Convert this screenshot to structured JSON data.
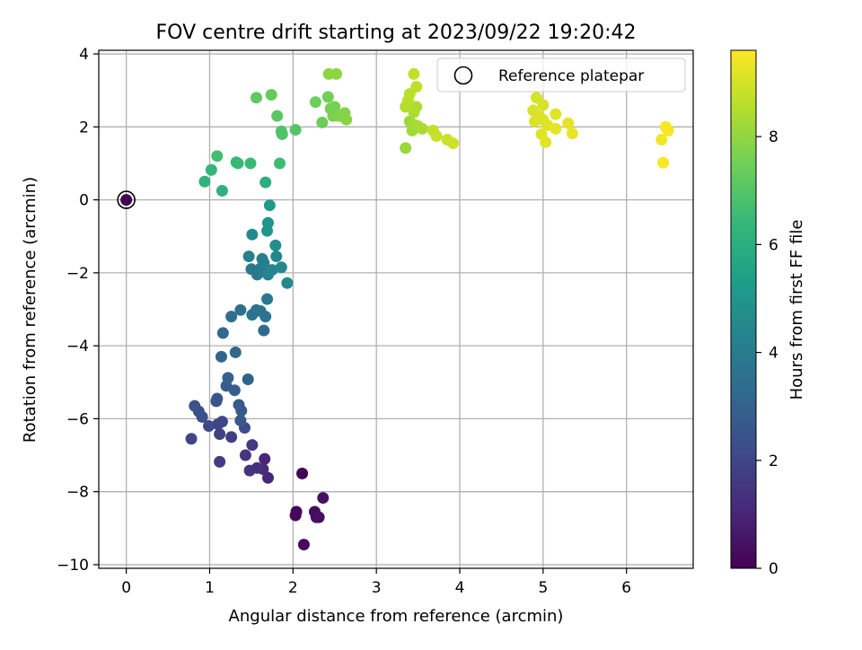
{
  "chart_data": {
    "type": "scatter",
    "title": "FOV centre drift starting at 2023/09/22 19:20:42",
    "xlabel": "Angular distance from reference (arcmin)",
    "ylabel": "Rotation from reference (arcmin)",
    "xlim": [
      -0.33,
      6.8
    ],
    "ylim": [
      -10.1,
      4.1
    ],
    "xticks": [
      0,
      1,
      2,
      3,
      4,
      5,
      6
    ],
    "yticks": [
      4,
      2,
      0,
      -2,
      -4,
      -6,
      -8,
      -10
    ],
    "xtick_labels": [
      "0",
      "1",
      "2",
      "3",
      "4",
      "5",
      "6"
    ],
    "ytick_labels": [
      "4",
      "2",
      "0",
      "−2",
      "−4",
      "−6",
      "−8",
      "−10"
    ],
    "grid": true,
    "legend": {
      "placement": "top-right",
      "entries": [
        {
          "label": "Reference platepar",
          "marker": "open-circle"
        }
      ]
    },
    "reference_point": {
      "x": 0,
      "y": 0,
      "hours": 0
    },
    "colorbar": {
      "label": "Hours from first FF file",
      "colormap": "viridis",
      "range": [
        0,
        9.6
      ],
      "ticks": [
        0,
        2,
        4,
        6,
        8
      ],
      "tick_labels": [
        "0",
        "2",
        "4",
        "6",
        "8"
      ]
    },
    "points": [
      {
        "x": 2.11,
        "y": -7.5,
        "hours": 0.1
      },
      {
        "x": 2.04,
        "y": -8.55,
        "hours": 0.15
      },
      {
        "x": 2.03,
        "y": -8.65,
        "hours": 0.2
      },
      {
        "x": 2.13,
        "y": -9.45,
        "hours": 0.25
      },
      {
        "x": 2.26,
        "y": -8.55,
        "hours": 0.3
      },
      {
        "x": 2.28,
        "y": -8.7,
        "hours": 0.35
      },
      {
        "x": 2.31,
        "y": -8.7,
        "hours": 0.4
      },
      {
        "x": 2.36,
        "y": -8.17,
        "hours": 0.45
      },
      {
        "x": 1.66,
        "y": -7.1,
        "hours": 1.0
      },
      {
        "x": 1.7,
        "y": -7.62,
        "hours": 1.1
      },
      {
        "x": 1.64,
        "y": -7.38,
        "hours": 1.2
      },
      {
        "x": 1.57,
        "y": -7.35,
        "hours": 1.3
      },
      {
        "x": 1.48,
        "y": -7.42,
        "hours": 1.4
      },
      {
        "x": 1.43,
        "y": -7.0,
        "hours": 1.5
      },
      {
        "x": 1.51,
        "y": -6.72,
        "hours": 1.6
      },
      {
        "x": 1.12,
        "y": -7.18,
        "hours": 1.7
      },
      {
        "x": 1.26,
        "y": -6.5,
        "hours": 1.8
      },
      {
        "x": 1.12,
        "y": -6.42,
        "hours": 1.85
      },
      {
        "x": 1.1,
        "y": -6.15,
        "hours": 1.9
      },
      {
        "x": 0.78,
        "y": -6.55,
        "hours": 2.0
      },
      {
        "x": 1.15,
        "y": -6.08,
        "hours": 2.05
      },
      {
        "x": 0.99,
        "y": -6.2,
        "hours": 2.1
      },
      {
        "x": 1.42,
        "y": -6.25,
        "hours": 2.2
      },
      {
        "x": 0.91,
        "y": -5.95,
        "hours": 2.3
      },
      {
        "x": 0.87,
        "y": -5.8,
        "hours": 2.35
      },
      {
        "x": 0.82,
        "y": -5.65,
        "hours": 2.4
      },
      {
        "x": 1.08,
        "y": -5.52,
        "hours": 2.45
      },
      {
        "x": 1.09,
        "y": -5.45,
        "hours": 2.5
      },
      {
        "x": 1.37,
        "y": -6.05,
        "hours": 2.6
      },
      {
        "x": 1.38,
        "y": -5.78,
        "hours": 2.65
      },
      {
        "x": 1.35,
        "y": -5.62,
        "hours": 2.7
      },
      {
        "x": 1.3,
        "y": -5.22,
        "hours": 2.8
      },
      {
        "x": 1.2,
        "y": -5.1,
        "hours": 2.85
      },
      {
        "x": 1.22,
        "y": -4.88,
        "hours": 2.9
      },
      {
        "x": 1.46,
        "y": -4.92,
        "hours": 3.0
      },
      {
        "x": 1.14,
        "y": -4.3,
        "hours": 3.1
      },
      {
        "x": 1.31,
        "y": -4.18,
        "hours": 3.2
      },
      {
        "x": 1.16,
        "y": -3.65,
        "hours": 3.3
      },
      {
        "x": 1.65,
        "y": -3.58,
        "hours": 3.4
      },
      {
        "x": 1.26,
        "y": -3.2,
        "hours": 3.5
      },
      {
        "x": 1.37,
        "y": -3.02,
        "hours": 3.55
      },
      {
        "x": 1.51,
        "y": -3.15,
        "hours": 3.6
      },
      {
        "x": 1.56,
        "y": -3.02,
        "hours": 3.65
      },
      {
        "x": 1.61,
        "y": -3.05,
        "hours": 3.7
      },
      {
        "x": 1.67,
        "y": -3.2,
        "hours": 3.75
      },
      {
        "x": 1.69,
        "y": -2.72,
        "hours": 3.8
      },
      {
        "x": 1.57,
        "y": -2.05,
        "hours": 3.9
      },
      {
        "x": 1.5,
        "y": -1.9,
        "hours": 3.95
      },
      {
        "x": 1.61,
        "y": -1.88,
        "hours": 4.0
      },
      {
        "x": 1.65,
        "y": -1.73,
        "hours": 4.05
      },
      {
        "x": 1.63,
        "y": -1.62,
        "hours": 4.1
      },
      {
        "x": 1.47,
        "y": -1.55,
        "hours": 4.2
      },
      {
        "x": 1.7,
        "y": -2.05,
        "hours": 4.3
      },
      {
        "x": 1.72,
        "y": -1.95,
        "hours": 4.35
      },
      {
        "x": 1.75,
        "y": -1.92,
        "hours": 4.4
      },
      {
        "x": 1.8,
        "y": -1.55,
        "hours": 4.45
      },
      {
        "x": 1.86,
        "y": -1.85,
        "hours": 4.5
      },
      {
        "x": 1.93,
        "y": -2.28,
        "hours": 4.55
      },
      {
        "x": 1.51,
        "y": -0.95,
        "hours": 4.6
      },
      {
        "x": 1.79,
        "y": -1.25,
        "hours": 4.7
      },
      {
        "x": 1.69,
        "y": -0.85,
        "hours": 4.9
      },
      {
        "x": 1.7,
        "y": -0.63,
        "hours": 5.0
      },
      {
        "x": 1.72,
        "y": -0.15,
        "hours": 5.2
      },
      {
        "x": 1.67,
        "y": 0.48,
        "hours": 6.0
      },
      {
        "x": 1.15,
        "y": 0.25,
        "hours": 6.1
      },
      {
        "x": 0.94,
        "y": 0.5,
        "hours": 6.2
      },
      {
        "x": 1.02,
        "y": 0.82,
        "hours": 6.3
      },
      {
        "x": 1.32,
        "y": 1.03,
        "hours": 6.4
      },
      {
        "x": 1.34,
        "y": 1.0,
        "hours": 6.45
      },
      {
        "x": 1.49,
        "y": 1.0,
        "hours": 6.5
      },
      {
        "x": 1.84,
        "y": 1.0,
        "hours": 6.6
      },
      {
        "x": 1.09,
        "y": 1.2,
        "hours": 6.7
      },
      {
        "x": 1.87,
        "y": 1.8,
        "hours": 6.9
      },
      {
        "x": 1.86,
        "y": 1.88,
        "hours": 6.95
      },
      {
        "x": 2.03,
        "y": 1.92,
        "hours": 7.0
      },
      {
        "x": 1.81,
        "y": 2.3,
        "hours": 7.1
      },
      {
        "x": 1.56,
        "y": 2.8,
        "hours": 7.2
      },
      {
        "x": 1.74,
        "y": 2.88,
        "hours": 7.3
      },
      {
        "x": 2.35,
        "y": 2.12,
        "hours": 7.4
      },
      {
        "x": 2.27,
        "y": 2.68,
        "hours": 7.45
      },
      {
        "x": 2.42,
        "y": 2.82,
        "hours": 7.5
      },
      {
        "x": 2.45,
        "y": 2.5,
        "hours": 7.55
      },
      {
        "x": 2.5,
        "y": 2.55,
        "hours": 7.6
      },
      {
        "x": 2.48,
        "y": 2.3,
        "hours": 7.65
      },
      {
        "x": 2.55,
        "y": 2.3,
        "hours": 7.7
      },
      {
        "x": 2.6,
        "y": 2.28,
        "hours": 7.75
      },
      {
        "x": 2.62,
        "y": 2.38,
        "hours": 7.8
      },
      {
        "x": 2.64,
        "y": 2.2,
        "hours": 7.85
      },
      {
        "x": 2.43,
        "y": 3.45,
        "hours": 7.9
      },
      {
        "x": 2.52,
        "y": 3.45,
        "hours": 7.95
      },
      {
        "x": 3.35,
        "y": 1.42,
        "hours": 8.1
      },
      {
        "x": 3.4,
        "y": 2.15,
        "hours": 8.15
      },
      {
        "x": 3.43,
        "y": 1.9,
        "hours": 8.2
      },
      {
        "x": 3.46,
        "y": 2.05,
        "hours": 8.25
      },
      {
        "x": 3.5,
        "y": 2.02,
        "hours": 8.3
      },
      {
        "x": 3.55,
        "y": 1.95,
        "hours": 8.35
      },
      {
        "x": 3.45,
        "y": 2.4,
        "hours": 8.4
      },
      {
        "x": 3.48,
        "y": 2.55,
        "hours": 8.45
      },
      {
        "x": 3.35,
        "y": 2.55,
        "hours": 8.5
      },
      {
        "x": 3.38,
        "y": 2.72,
        "hours": 8.55
      },
      {
        "x": 3.4,
        "y": 2.9,
        "hours": 8.6
      },
      {
        "x": 3.48,
        "y": 3.1,
        "hours": 8.65
      },
      {
        "x": 3.45,
        "y": 3.45,
        "hours": 8.7
      },
      {
        "x": 3.68,
        "y": 1.9,
        "hours": 8.75
      },
      {
        "x": 3.72,
        "y": 1.75,
        "hours": 8.8
      },
      {
        "x": 3.85,
        "y": 1.65,
        "hours": 8.85
      },
      {
        "x": 3.92,
        "y": 1.55,
        "hours": 8.9
      },
      {
        "x": 4.92,
        "y": 2.8,
        "hours": 9.0
      },
      {
        "x": 5.0,
        "y": 2.6,
        "hours": 9.02
      },
      {
        "x": 4.88,
        "y": 2.45,
        "hours": 9.05
      },
      {
        "x": 4.95,
        "y": 2.3,
        "hours": 9.07
      },
      {
        "x": 4.9,
        "y": 2.15,
        "hours": 9.1
      },
      {
        "x": 5.0,
        "y": 2.2,
        "hours": 9.12
      },
      {
        "x": 5.05,
        "y": 2.05,
        "hours": 9.15
      },
      {
        "x": 4.98,
        "y": 1.8,
        "hours": 9.17
      },
      {
        "x": 5.03,
        "y": 1.58,
        "hours": 9.2
      },
      {
        "x": 5.15,
        "y": 2.35,
        "hours": 9.22
      },
      {
        "x": 5.15,
        "y": 1.95,
        "hours": 9.25
      },
      {
        "x": 5.3,
        "y": 2.1,
        "hours": 9.27
      },
      {
        "x": 5.35,
        "y": 1.82,
        "hours": 9.3
      },
      {
        "x": 6.42,
        "y": 1.65,
        "hours": 9.45
      },
      {
        "x": 6.5,
        "y": 1.9,
        "hours": 9.5
      },
      {
        "x": 6.47,
        "y": 2.0,
        "hours": 9.52
      },
      {
        "x": 6.44,
        "y": 1.02,
        "hours": 9.55
      }
    ]
  }
}
